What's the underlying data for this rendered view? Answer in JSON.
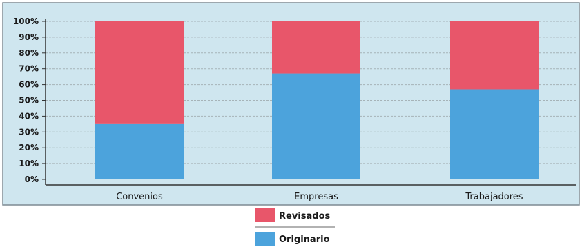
{
  "chart_data": {
    "type": "bar",
    "stacked": true,
    "categories": [
      "Convenios",
      "Empresas",
      "Trabajadores"
    ],
    "series": [
      {
        "name": "Originario",
        "values": [
          35,
          67,
          57
        ],
        "color": "#4ca3dc"
      },
      {
        "name": "Revisados",
        "values": [
          65,
          33,
          43
        ],
        "color": "#e8566a"
      }
    ],
    "yticks": [
      "0%",
      "10%",
      "20%",
      "30%",
      "40%",
      "50%",
      "60%",
      "70%",
      "80%",
      "90%",
      "100%"
    ],
    "ylim": [
      0,
      100
    ],
    "grid": true,
    "legend_position": "bottom",
    "legend_order": [
      "Revisados",
      "Originario"
    ],
    "colors": {
      "plot_background": "#cfe6ef",
      "frame": "#7d8a92",
      "grid": "#a6b3b8"
    }
  }
}
